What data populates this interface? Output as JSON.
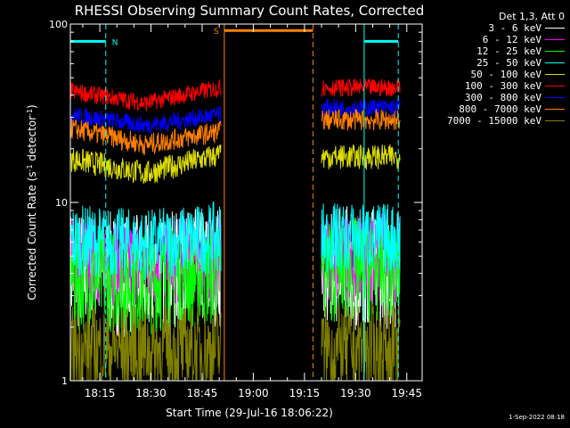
{
  "chart_data": {
    "type": "line",
    "title": "RHESSI Observing Summary Count Rates, Corrected",
    "xlabel": "Start Time (29-Jul-16 18:06:22)",
    "ylabel_main": "Corrected Count Rate (s",
    "ylabel_sup": "-1",
    "ylabel_mid": " detector",
    "ylabel_sup2": "-1",
    "ylabel_end": ")",
    "yscale": "log",
    "ylim": [
      1,
      100
    ],
    "y_ticks": [
      {
        "value": 1,
        "label": "1"
      },
      {
        "value": 10,
        "label": "10"
      },
      {
        "value": 100,
        "label": "100"
      }
    ],
    "x_ticks": [
      "18:15",
      "18:30",
      "18:45",
      "19:00",
      "19:15",
      "19:30",
      "19:45"
    ],
    "data_windows": [
      [
        "18:06:22",
        "18:50:30"
      ],
      [
        "19:20:00",
        "19:43:00"
      ]
    ],
    "legend_title": "Det 1,3, Att 0",
    "series": [
      {
        "name": "3 - 6 keV",
        "color": "#ffffff",
        "level_start": 4.2,
        "level_mid": 3.8,
        "level_end": 4.4,
        "noise": 0.35,
        "level_after": 4.3
      },
      {
        "name": "6 - 12 keV",
        "color": "#ff00ff",
        "level_start": 4.8,
        "level_mid": 4.6,
        "level_end": 4.8,
        "noise": 0.25,
        "level_after": 4.9
      },
      {
        "name": "12 - 25 keV",
        "color": "#00ff00",
        "level_start": 3.8,
        "level_mid": 3.6,
        "level_end": 4.0,
        "noise": 0.3,
        "level_after": 4.2
      },
      {
        "name": "25 - 50 keV",
        "color": "#00ffff",
        "level_start": 6.2,
        "level_mid": 5.8,
        "level_end": 6.4,
        "noise": 0.2,
        "level_after": 6.3
      },
      {
        "name": "50 - 100 keV",
        "color": "#dddd00",
        "level_start": 17.5,
        "level_mid": 14.5,
        "level_end": 18.5,
        "noise": 0.07,
        "level_after": 18.0
      },
      {
        "name": "100 - 300 keV",
        "color": "#ff0000",
        "level_start": 42,
        "level_mid": 36,
        "level_end": 44,
        "noise": 0.05,
        "level_after": 44
      },
      {
        "name": "300 - 800 keV",
        "color": "#0000ff",
        "level_start": 31,
        "level_mid": 27,
        "level_end": 31,
        "noise": 0.05,
        "level_after": 34
      },
      {
        "name": "800 - 7000 keV",
        "color": "#ff8000",
        "level_start": 26,
        "level_mid": 21,
        "level_end": 25,
        "noise": 0.06,
        "level_after": 29
      },
      {
        "name": "7000 - 15000 keV",
        "color": "#808000",
        "level_start": 1.5,
        "level_mid": 1.5,
        "level_end": 1.5,
        "noise": 0.25,
        "level_after": 1.5
      }
    ],
    "flags": [
      {
        "label": "N",
        "color": "#00ffff",
        "start": "18:06:22",
        "end": "18:16:45",
        "value": 80,
        "dashed_end": true
      },
      {
        "label": "S",
        "color": "#ff8000",
        "start": "18:51:30",
        "end": "19:17:30",
        "value": 92,
        "dashed_end": true
      },
      {
        "label": "",
        "color": "#00ffff",
        "start": "19:32:30",
        "end": "19:42:30",
        "value": 80,
        "dashed_end": true
      }
    ]
  },
  "timestamp": "1-Sep-2022 08:18"
}
